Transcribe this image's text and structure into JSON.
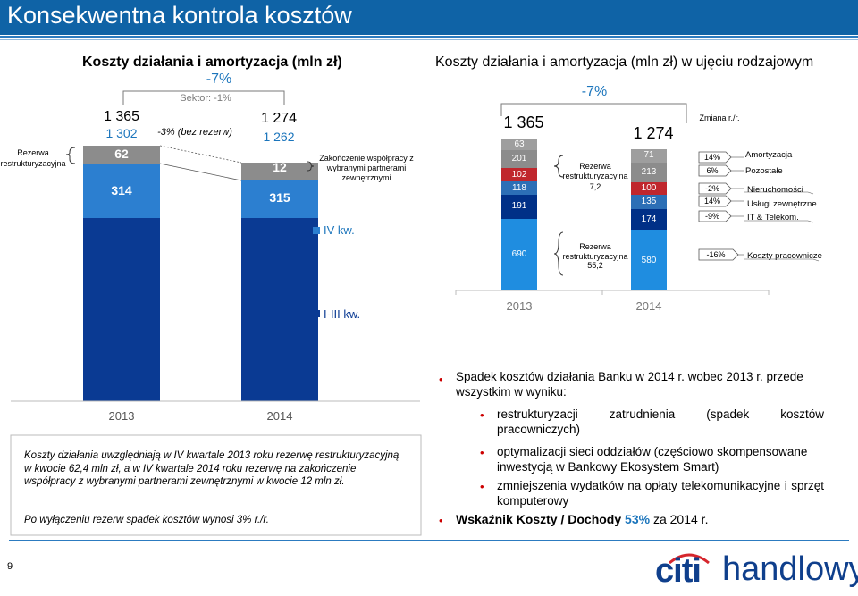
{
  "header": {
    "title": "Konsekwentna kontrola kosztów"
  },
  "left": {
    "title": "Koszty działania i amortyzacja (mln zł)",
    "change": "-7%",
    "sector": "Sektor: -1%",
    "ex_reserve": "-3% (bez rezerw)",
    "reserve_label": "Rezerwa restrukturyzacyjna",
    "coop_label": "Zakończenie współpracy z wybranymi partnerami zewnętrznymi",
    "legend_q4": "IV kw.",
    "legend_q13": "I-III kw.",
    "bars": [
      {
        "year": "2013",
        "total": "1 365",
        "total_ex": "1 302",
        "reserve": "62",
        "q4": "314"
      },
      {
        "year": "2014",
        "total": "1 274",
        "total_ex": "1 262",
        "reserve": "12",
        "q4": "315"
      }
    ],
    "note": "Koszty działania uwzględniają w IV kwartale 2013 roku rezerwę restrukturyzacyjną w kwocie 62,4 mln zł, a w IV kwartale 2014 roku rezerwę na zakończenie współpracy z wybranymi partnerami zewnętrznymi w kwocie 12 mln zł.",
    "note2": "Po wyłączeniu rezerw spadek kosztów wynosi 3% r./r."
  },
  "right": {
    "title": "Koszty działania i amortyzacja (mln zł) w ujęciu rodzajowym",
    "change": "-7%",
    "change_header": "Zmiana r./r.",
    "reserve1_label": "Rezerwa restrukturyzacyjna",
    "reserve1_value": "7,2",
    "reserve2_label": "Rezerwa restrukturyzacyjna",
    "reserve2_value": "55,2",
    "years": [
      "2013",
      "2014"
    ],
    "totals": [
      "1 365",
      "1 274"
    ],
    "segments": [
      {
        "name": "Amortyzacja",
        "v2013": "63",
        "v2014": "71",
        "change": "14%",
        "color": "#9e9e9e"
      },
      {
        "name": "Pozostałe",
        "v2013": "201",
        "v2014": "213",
        "change": "6%",
        "color": "#8c8c8c"
      },
      {
        "name": "Nieruchomości",
        "v2013": "102",
        "v2014": "100",
        "change": "-2%",
        "color": "#c0272d"
      },
      {
        "name": "Usługi zewnętrzne",
        "v2013": "118",
        "v2014": "135",
        "change": "14%",
        "color": "#2c6fb6"
      },
      {
        "name": "IT & Telekom.",
        "v2013": "191",
        "v2014": "174",
        "change": "-9%",
        "color": "#003087"
      },
      {
        "name": "Koszty pracownicze",
        "v2013": "690",
        "v2014": "580",
        "change": "-16%",
        "color": "#1f8de0"
      }
    ]
  },
  "bullets": {
    "main": "Spadek kosztów działania Banku w 2014 r. wobec 2013 r. przede wszystkim w wyniku:",
    "items": [
      "restrukturyzacji zatrudnienia (spadek kosztów pracowniczych)",
      "optymalizacji sieci oddziałów (częściowo skompensowane inwestycją w Bankowy Ekosystem Smart)",
      "zmniejszenia wydatków na opłaty telekomunikacyjne i sprzęt komputerowy"
    ],
    "ratio_prefix": "Wskaźnik Koszty / Dochody",
    "ratio_value": "53%",
    "ratio_suffix": "za 2014 r."
  },
  "footer": {
    "page": "9",
    "logo_citi": "citi",
    "logo_handlowy": "handlowy"
  },
  "colors": {
    "accent": "#0f63a6",
    "dark_blue": "#003087",
    "bright_blue": "#1b75bc"
  }
}
